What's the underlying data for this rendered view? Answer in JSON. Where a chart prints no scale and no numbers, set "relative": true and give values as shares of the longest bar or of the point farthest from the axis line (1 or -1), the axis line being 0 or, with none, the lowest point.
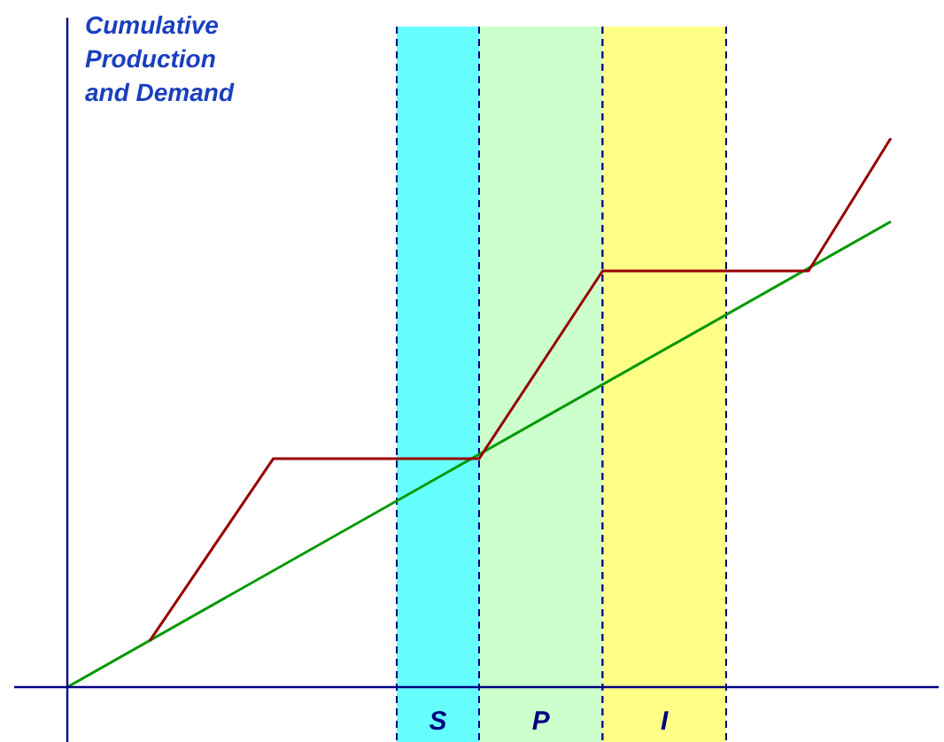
{
  "chart_data": {
    "type": "line",
    "ylabel": "Cumulative Production and Demand",
    "relative": true,
    "legend": false,
    "marker": "none",
    "line_style": "solid",
    "categories": [
      null,
      null,
      null,
      null,
      null,
      null,
      null,
      null,
      null,
      null,
      null,
      null,
      null,
      null,
      null,
      null,
      null,
      null,
      null,
      null,
      null
    ],
    "series": [
      {
        "color": "#990000",
        "values": [
          null,
          null,
          0.084,
          null,
          null,
          0.416,
          null,
          null,
          null,
          null,
          0.416,
          null,
          null,
          0.758,
          null,
          null,
          null,
          null,
          0.758,
          null,
          1
        ]
      },
      {
        "color": "#009900",
        "values": [
          0,
          null,
          null,
          null,
          null,
          null,
          null,
          null,
          null,
          null,
          null,
          null,
          null,
          null,
          null,
          null,
          null,
          null,
          null,
          null,
          0.848
        ]
      }
    ],
    "grid": "x",
    "annotations": [
      "S",
      "P",
      "I"
    ]
  }
}
